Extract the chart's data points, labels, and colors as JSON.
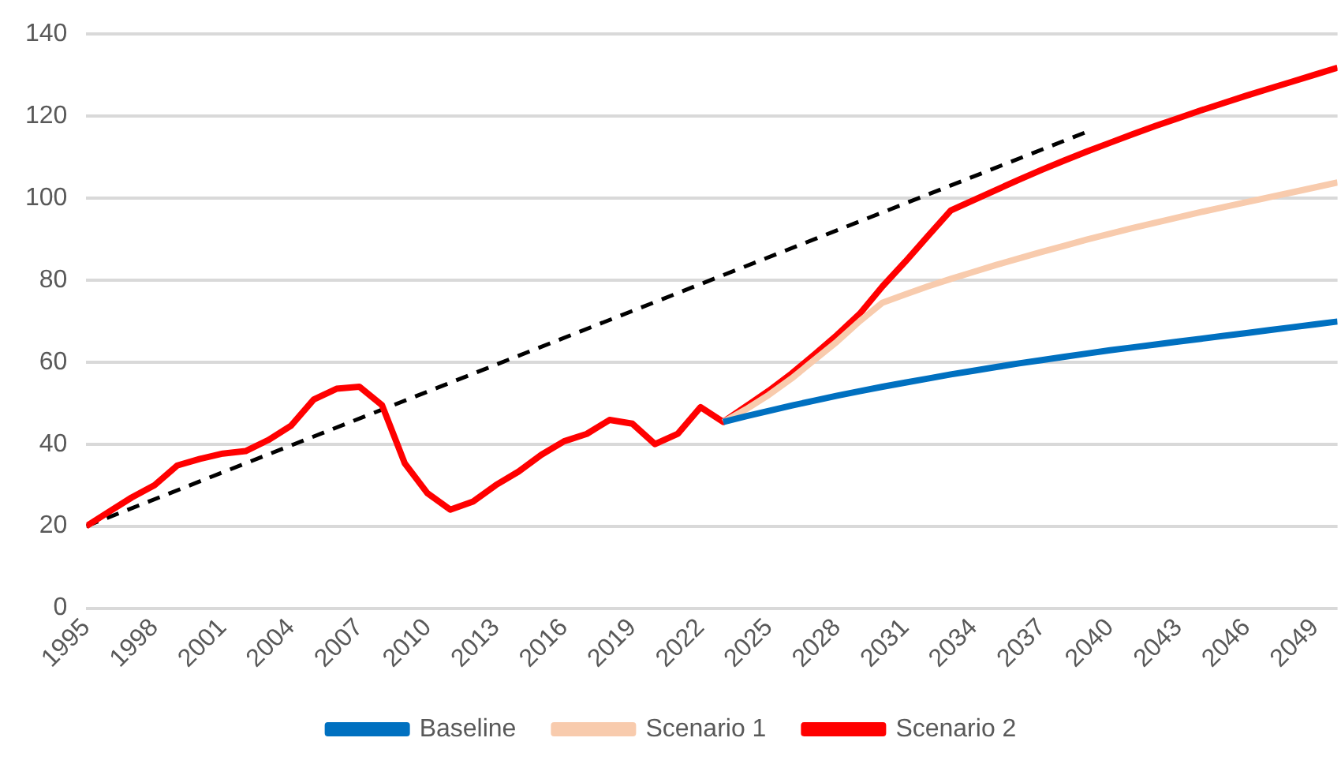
{
  "chart_data": {
    "type": "line",
    "x": [
      1995,
      1996,
      1997,
      1998,
      1999,
      2000,
      2001,
      2002,
      2003,
      2004,
      2005,
      2006,
      2007,
      2008,
      2009,
      2010,
      2011,
      2012,
      2013,
      2014,
      2015,
      2016,
      2017,
      2018,
      2019,
      2020,
      2021,
      2022,
      2023,
      2024,
      2025,
      2026,
      2027,
      2028,
      2029,
      2030,
      2031,
      2032,
      2033,
      2034,
      2035,
      2036,
      2037,
      2038,
      2039,
      2040,
      2041,
      2042,
      2043,
      2044,
      2045,
      2046,
      2047,
      2048,
      2049,
      2050
    ],
    "xlim": [
      1995,
      2050
    ],
    "xticks": [
      1995,
      1998,
      2001,
      2004,
      2007,
      2010,
      2013,
      2016,
      2019,
      2022,
      2025,
      2028,
      2031,
      2034,
      2037,
      2040,
      2043,
      2046,
      2049
    ],
    "ylim": [
      0,
      140
    ],
    "yticks": [
      0,
      20,
      40,
      60,
      80,
      100,
      120,
      140
    ],
    "grid": "y",
    "legend": "bottom",
    "marker": "none",
    "line_style": "solid",
    "series": [
      {
        "name": "Baseline",
        "color": "#0070c0",
        "values": [
          null,
          null,
          null,
          null,
          null,
          null,
          null,
          null,
          null,
          null,
          null,
          null,
          null,
          null,
          null,
          null,
          null,
          null,
          null,
          null,
          null,
          null,
          null,
          null,
          null,
          null,
          null,
          null,
          45.4,
          46.8,
          48.1,
          49.4,
          50.6,
          51.8,
          52.9,
          54.0,
          55.0,
          56.0,
          57.0,
          57.9,
          58.8,
          59.7,
          60.5,
          61.3,
          62.1,
          62.9,
          63.6,
          64.3,
          65.0,
          65.7,
          66.4,
          67.1,
          67.8,
          68.5,
          69.2,
          69.9
        ]
      },
      {
        "name": "Scenario 1",
        "color": "#f8cbad",
        "values": [
          null,
          null,
          null,
          null,
          null,
          null,
          null,
          null,
          null,
          null,
          null,
          null,
          null,
          null,
          null,
          null,
          null,
          null,
          null,
          null,
          null,
          null,
          null,
          null,
          null,
          null,
          null,
          null,
          45.4,
          48.5,
          52,
          56,
          60.5,
          65,
          70,
          74.5,
          76.5,
          78.5,
          80.3,
          82,
          83.7,
          85.3,
          86.9,
          88.4,
          89.9,
          91.3,
          92.7,
          94,
          95.3,
          96.6,
          97.8,
          99,
          100.2,
          101.4,
          102.6,
          103.8
        ]
      },
      {
        "name": "Scenario 2",
        "color": "#ff0000",
        "values": [
          20,
          23.5,
          27,
          30,
          34.8,
          36.4,
          37.7,
          38.3,
          41,
          44.5,
          50.9,
          53.5,
          54,
          49.5,
          35.3,
          28,
          24,
          26,
          30,
          33.3,
          37.4,
          40.7,
          42.5,
          45.9,
          45,
          40,
          42.5,
          49,
          45.4,
          49.2,
          53,
          57.2,
          61.8,
          66.6,
          71.8,
          78.5,
          84.5,
          90.8,
          97,
          99.5,
          102,
          104.5,
          106.9,
          109.2,
          111.4,
          113.5,
          115.6,
          117.6,
          119.5,
          121.4,
          123.2,
          125,
          126.7,
          128.4,
          130.1,
          131.8
        ]
      },
      {
        "type": "line",
        "color": "#000000",
        "line_style": "dashed",
        "x": [
          1995,
          2039
        ],
        "values": [
          20,
          116.2
        ]
      }
    ]
  }
}
